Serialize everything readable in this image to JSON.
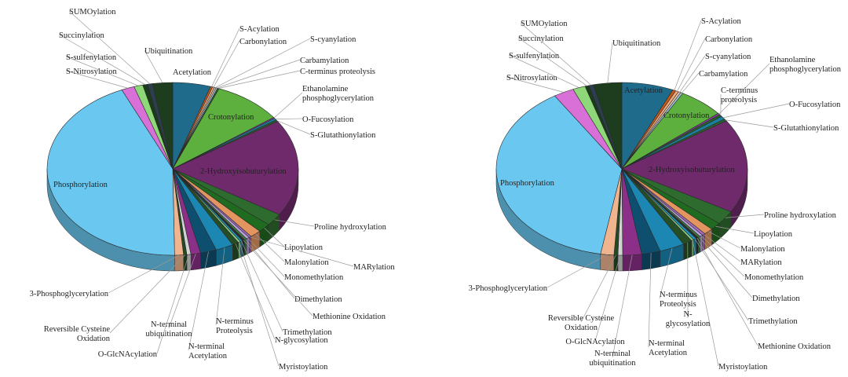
{
  "chart_data": [
    {
      "type": "pie",
      "title": "",
      "style": "3d",
      "slices": [
        {
          "name": "Acetylation",
          "value": 4.7,
          "color": "#1f6b8c"
        },
        {
          "name": "S-Acylation",
          "value": 0.25,
          "color": "#c45a1a"
        },
        {
          "name": "Carbonylation",
          "value": 0.25,
          "color": "#f0a878"
        },
        {
          "name": "S-cyanylation",
          "value": 0.2,
          "color": "#e8c9b0"
        },
        {
          "name": "Carbamylation",
          "value": 0.2,
          "color": "#9fc7e0"
        },
        {
          "name": "C-terminus proteolysis",
          "value": 0.2,
          "color": "#2b5f2f"
        },
        {
          "name": "Crotonylation",
          "value": 8.5,
          "color": "#5db03d"
        },
        {
          "name": "Ethanolamine phosphoglycerylation",
          "value": 0.2,
          "color": "#8b3fa3"
        },
        {
          "name": "O-Fucosylation",
          "value": 0.35,
          "color": "#1b7f9e"
        },
        {
          "name": "S-Glutathionylation",
          "value": 0.3,
          "color": "#2b5f2f"
        },
        {
          "name": "2-Hydroxyisobuturylation",
          "value": 17.5,
          "color": "#6e2a6b"
        },
        {
          "name": "Proline hydroxylation",
          "value": 2.2,
          "color": "#2e6b2e"
        },
        {
          "name": "Lipoylation",
          "value": 1.6,
          "color": "#1f6b1f"
        },
        {
          "name": "Malonylation",
          "value": 1.4,
          "color": "#e39560"
        },
        {
          "name": "MARylation",
          "value": 0.3,
          "color": "#a46bbf"
        },
        {
          "name": "Monomethylation",
          "value": 0.4,
          "color": "#b6a0d8"
        },
        {
          "name": "Dimethylation",
          "value": 0.3,
          "color": "#3c7d3c"
        },
        {
          "name": "Methionine  Oxidation",
          "value": 0.3,
          "color": "#2d2d2d"
        },
        {
          "name": "Trimethylation",
          "value": 0.3,
          "color": "#1c8fb7"
        },
        {
          "name": "Myristoylation",
          "value": 0.3,
          "color": "#8ed081"
        },
        {
          "name": "N-glycosylation",
          "value": 0.8,
          "color": "#264e26"
        },
        {
          "name": "N-terminus Proteolysis",
          "value": 2.2,
          "color": "#1b87b2"
        },
        {
          "name": "N-terminal Acetylation",
          "value": 2.0,
          "color": "#0e4f70"
        },
        {
          "name": "N-terminal ubiquitination",
          "value": 1.2,
          "color": "#8b2f89"
        },
        {
          "name": "O-GlcNAcylation",
          "value": 0.5,
          "color": "#d3d3d3"
        },
        {
          "name": "Reversible Cysteine Oxidation",
          "value": 0.4,
          "color": "#234a23"
        },
        {
          "name": "3-Phosphoglycerylation",
          "value": 1.1,
          "color": "#f0b48f"
        },
        {
          "name": "Phosphorylation",
          "value": 42.0,
          "color": "#6ac8f0"
        },
        {
          "name": "S-Nitrosylation",
          "value": 1.6,
          "color": "#d870d8"
        },
        {
          "name": "S-sulfenylation",
          "value": 1.1,
          "color": "#8fd87a"
        },
        {
          "name": "Succinylation",
          "value": 0.6,
          "color": "#1b3c1b"
        },
        {
          "name": "SUMOylation",
          "value": 0.6,
          "color": "#2c3e50"
        },
        {
          "name": "Ubiquitination",
          "value": 2.5,
          "color": "#1e3d1e"
        }
      ]
    },
    {
      "type": "pie",
      "title": "",
      "style": "3d",
      "slices": [
        {
          "name": "Acetylation",
          "value": 6.6,
          "color": "#1f6b8c"
        },
        {
          "name": "S-Acylation",
          "value": 0.4,
          "color": "#c45a1a"
        },
        {
          "name": "Carbonylation",
          "value": 0.4,
          "color": "#f0a878"
        },
        {
          "name": "S-cyanylation",
          "value": 0.3,
          "color": "#e8c9b0"
        },
        {
          "name": "Carbamylation",
          "value": 0.3,
          "color": "#9fc7e0"
        },
        {
          "name": "Crotonylation",
          "value": 5.8,
          "color": "#5db03d"
        },
        {
          "name": "Ethanolamine phosphoglycerylation",
          "value": 0.3,
          "color": "#8b3fa3"
        },
        {
          "name": "C-terminus proteolysis",
          "value": 0.4,
          "color": "#2b5f2f"
        },
        {
          "name": "O-Fucosylation",
          "value": 0.6,
          "color": "#1b7f9e"
        },
        {
          "name": "S-Glutathionylation",
          "value": 0.4,
          "color": "#2b5f2f"
        },
        {
          "name": "2-Hydroxyisobuturylation",
          "value": 17.5,
          "color": "#6e2a6b"
        },
        {
          "name": "Proline hydroxylation",
          "value": 2.6,
          "color": "#2e6b2e"
        },
        {
          "name": "Lipoylation",
          "value": 1.4,
          "color": "#1f6b1f"
        },
        {
          "name": "Malonylation",
          "value": 1.2,
          "color": "#e39560"
        },
        {
          "name": "MARylation",
          "value": 0.4,
          "color": "#a46bbf"
        },
        {
          "name": "Monomethylation",
          "value": 0.4,
          "color": "#b6a0d8"
        },
        {
          "name": "Dimethylation",
          "value": 0.3,
          "color": "#3c7d3c"
        },
        {
          "name": "Methionine  Oxidation",
          "value": 0.3,
          "color": "#2d2d2d"
        },
        {
          "name": "Trimethylation",
          "value": 0.4,
          "color": "#1c8fb7"
        },
        {
          "name": "Myristoylation",
          "value": 0.3,
          "color": "#8ed081"
        },
        {
          "name": "N-glycosylation",
          "value": 1.2,
          "color": "#264e26"
        },
        {
          "name": "N-terminus Proteolysis",
          "value": 3.2,
          "color": "#1b87b2"
        },
        {
          "name": "N-terminal Acetylation",
          "value": 2.4,
          "color": "#0e4f70"
        },
        {
          "name": "N-terminal ubiquitination",
          "value": 2.4,
          "color": "#8b2f89"
        },
        {
          "name": "O-GlcNAcylation",
          "value": 0.6,
          "color": "#d3d3d3"
        },
        {
          "name": "Reversible Cysteine Oxidation",
          "value": 0.5,
          "color": "#234a23"
        },
        {
          "name": "3-Phosphoglycerylation",
          "value": 1.7,
          "color": "#f0b48f"
        },
        {
          "name": "Phosphorylation",
          "value": 38.0,
          "color": "#6ac8f0"
        },
        {
          "name": "S-Nitrosylation",
          "value": 2.6,
          "color": "#d870d8"
        },
        {
          "name": "S-sulfenylation",
          "value": 1.6,
          "color": "#8fd87a"
        },
        {
          "name": "Succinylation",
          "value": 0.5,
          "color": "#1b3c1b"
        },
        {
          "name": "SUMOylation",
          "value": 0.6,
          "color": "#2c3e50"
        },
        {
          "name": "Ubiquitination",
          "value": 3.6,
          "color": "#1e3d1e"
        }
      ]
    }
  ]
}
